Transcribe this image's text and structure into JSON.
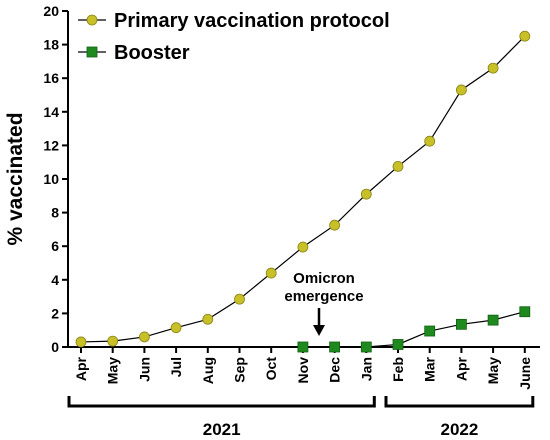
{
  "chart_data": {
    "type": "line",
    "ylabel": "% vaccinated",
    "ylim": [
      0,
      20
    ],
    "yticks": [
      0,
      2,
      4,
      6,
      8,
      10,
      12,
      14,
      16,
      18,
      20
    ],
    "categories": [
      "Apr",
      "May",
      "Jun",
      "Jul",
      "Aug",
      "Sep",
      "Oct",
      "Nov",
      "Dec",
      "Jan",
      "Feb",
      "Mar",
      "Apr",
      "May",
      "June"
    ],
    "year_groups": [
      {
        "label": "2021",
        "months": [
          "Apr",
          "May",
          "Jun",
          "Jul",
          "Aug",
          "Sep",
          "Oct",
          "Nov",
          "Dec",
          "Jan"
        ]
      },
      {
        "label": "2022",
        "months": [
          "Feb",
          "Mar",
          "Apr",
          "May",
          "June"
        ]
      }
    ],
    "series": [
      {
        "name": "Primary vaccination protocol",
        "color": "#c8c027",
        "marker": "circle",
        "x": [
          "Apr",
          "May",
          "Jun",
          "Jul",
          "Aug",
          "Sep",
          "Oct",
          "Nov",
          "Dec",
          "Jan",
          "Feb",
          "Mar",
          "Apr",
          "May",
          "June"
        ],
        "values": [
          0.3,
          0.35,
          0.6,
          1.15,
          1.65,
          2.85,
          4.4,
          5.95,
          7.25,
          9.1,
          10.75,
          12.25,
          15.3,
          16.6,
          18.5
        ]
      },
      {
        "name": "Booster",
        "color": "#1e8a1e",
        "marker": "square",
        "x": [
          "Nov",
          "Dec",
          "Jan",
          "Feb",
          "Mar",
          "Apr",
          "May",
          "June"
        ],
        "values": [
          0.0,
          0.0,
          0.0,
          0.15,
          0.95,
          1.35,
          1.6,
          2.1
        ]
      }
    ],
    "annotation": {
      "lines": [
        "Omicron",
        "emergence"
      ],
      "at": "Dec",
      "arrow": "down"
    },
    "legend_position": "top-left",
    "grid": false
  }
}
